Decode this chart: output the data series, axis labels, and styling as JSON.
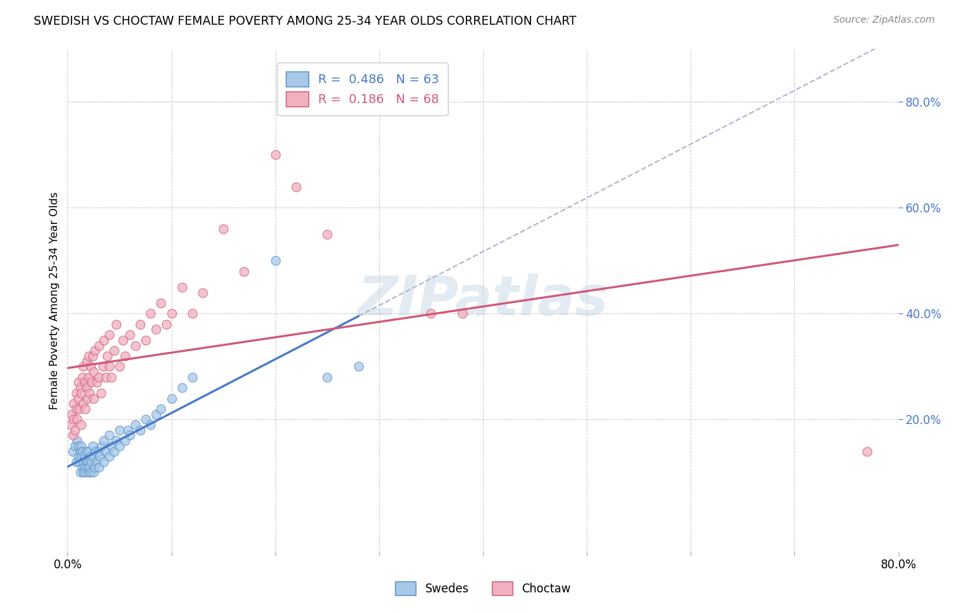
{
  "title": "SWEDISH VS CHOCTAW FEMALE POVERTY AMONG 25-34 YEAR OLDS CORRELATION CHART",
  "source": "Source: ZipAtlas.com",
  "ylabel": "Female Poverty Among 25-34 Year Olds",
  "xlim": [
    0.0,
    0.8
  ],
  "ylim": [
    -0.05,
    0.9
  ],
  "legend_R1": "0.486",
  "legend_N1": "63",
  "legend_R2": "0.186",
  "legend_N2": "68",
  "legend_label1": "Swedes",
  "legend_label2": "Choctaw",
  "blue_fill": "#a8c8e8",
  "blue_edge": "#5090c8",
  "pink_fill": "#f0b0c0",
  "pink_edge": "#d05878",
  "blue_line": "#4878c8",
  "pink_line": "#d05878",
  "dash_line": "#b0b8cc",
  "background_color": "#ffffff",
  "grid_color": "#cccccc",
  "watermark": "ZIPatlas",
  "swedes_x": [
    0.005,
    0.007,
    0.008,
    0.009,
    0.01,
    0.01,
    0.011,
    0.012,
    0.012,
    0.013,
    0.013,
    0.014,
    0.014,
    0.015,
    0.015,
    0.016,
    0.016,
    0.017,
    0.018,
    0.018,
    0.019,
    0.02,
    0.02,
    0.02,
    0.021,
    0.022,
    0.022,
    0.023,
    0.024,
    0.025,
    0.025,
    0.026,
    0.027,
    0.028,
    0.03,
    0.03,
    0.031,
    0.033,
    0.035,
    0.035,
    0.037,
    0.04,
    0.04,
    0.042,
    0.045,
    0.047,
    0.05,
    0.05,
    0.055,
    0.058,
    0.06,
    0.065,
    0.07,
    0.075,
    0.08,
    0.085,
    0.09,
    0.1,
    0.11,
    0.12,
    0.2,
    0.25,
    0.28
  ],
  "swedes_y": [
    0.14,
    0.15,
    0.12,
    0.16,
    0.13,
    0.15,
    0.12,
    0.14,
    0.1,
    0.13,
    0.15,
    0.11,
    0.14,
    0.1,
    0.12,
    0.11,
    0.13,
    0.1,
    0.12,
    0.14,
    0.11,
    0.1,
    0.12,
    0.14,
    0.11,
    0.13,
    0.1,
    0.12,
    0.15,
    0.1,
    0.13,
    0.11,
    0.14,
    0.12,
    0.11,
    0.14,
    0.13,
    0.15,
    0.12,
    0.16,
    0.14,
    0.13,
    0.17,
    0.15,
    0.14,
    0.16,
    0.15,
    0.18,
    0.16,
    0.18,
    0.17,
    0.19,
    0.18,
    0.2,
    0.19,
    0.21,
    0.22,
    0.24,
    0.26,
    0.28,
    0.5,
    0.28,
    0.3
  ],
  "choctaw_x": [
    0.003,
    0.004,
    0.005,
    0.006,
    0.006,
    0.007,
    0.008,
    0.008,
    0.009,
    0.01,
    0.01,
    0.011,
    0.012,
    0.013,
    0.013,
    0.014,
    0.015,
    0.015,
    0.016,
    0.017,
    0.018,
    0.018,
    0.019,
    0.02,
    0.02,
    0.021,
    0.022,
    0.023,
    0.024,
    0.025,
    0.025,
    0.026,
    0.028,
    0.03,
    0.03,
    0.032,
    0.034,
    0.035,
    0.037,
    0.038,
    0.04,
    0.04,
    0.042,
    0.045,
    0.047,
    0.05,
    0.053,
    0.055,
    0.06,
    0.065,
    0.07,
    0.075,
    0.08,
    0.085,
    0.09,
    0.095,
    0.1,
    0.11,
    0.12,
    0.13,
    0.15,
    0.17,
    0.2,
    0.22,
    0.25,
    0.35,
    0.38,
    0.77
  ],
  "choctaw_y": [
    0.19,
    0.21,
    0.17,
    0.2,
    0.23,
    0.18,
    0.22,
    0.25,
    0.2,
    0.24,
    0.27,
    0.22,
    0.26,
    0.19,
    0.25,
    0.28,
    0.23,
    0.3,
    0.27,
    0.22,
    0.26,
    0.31,
    0.24,
    0.28,
    0.32,
    0.25,
    0.3,
    0.27,
    0.32,
    0.24,
    0.29,
    0.33,
    0.27,
    0.28,
    0.34,
    0.25,
    0.3,
    0.35,
    0.28,
    0.32,
    0.3,
    0.36,
    0.28,
    0.33,
    0.38,
    0.3,
    0.35,
    0.32,
    0.36,
    0.34,
    0.38,
    0.35,
    0.4,
    0.37,
    0.42,
    0.38,
    0.4,
    0.45,
    0.4,
    0.44,
    0.56,
    0.48,
    0.7,
    0.64,
    0.55,
    0.4,
    0.4,
    0.14
  ]
}
